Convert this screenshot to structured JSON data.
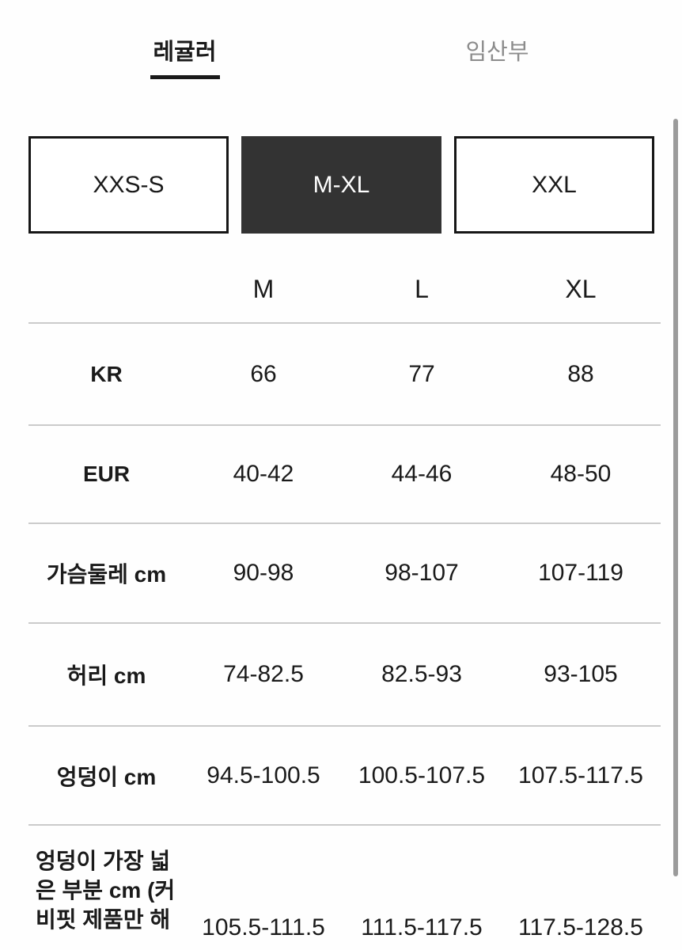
{
  "tabs": [
    {
      "label": "레귤러",
      "active": true
    },
    {
      "label": "임산부",
      "active": false
    }
  ],
  "size_groups": [
    {
      "label": "XXS-S",
      "selected": false
    },
    {
      "label": "M-XL",
      "selected": true
    },
    {
      "label": "XXL",
      "selected": false
    }
  ],
  "table": {
    "columns": [
      "M",
      "L",
      "XL"
    ],
    "rows": [
      {
        "label": "KR",
        "values": [
          "66",
          "77",
          "88"
        ]
      },
      {
        "label": "EUR",
        "values": [
          "40-42",
          "44-46",
          "48-50"
        ]
      },
      {
        "label": "가슴둘레 cm",
        "values": [
          "90-98",
          "98-107",
          "107-119"
        ]
      },
      {
        "label": "허리 cm",
        "values": [
          "74-82.5",
          "82.5-93",
          "93-105"
        ]
      },
      {
        "label": "엉덩이 cm",
        "values": [
          "94.5-100.5",
          "100.5-107.5",
          "107.5-117.5"
        ]
      },
      {
        "label": "엉덩이 가장 넓은 부분 cm (커비핏 제품만 해",
        "values": [
          "105.5-111.5",
          "111.5-117.5",
          "117.5-128.5"
        ]
      }
    ]
  },
  "colors": {
    "text": "#1a1a1a",
    "inactive_tab": "#8c8c8c",
    "selected_button_bg": "#333333",
    "button_border": "#161616",
    "divider": "#cbcbcb",
    "scrollbar": "#9b9b9b",
    "background": "#fefefe"
  }
}
